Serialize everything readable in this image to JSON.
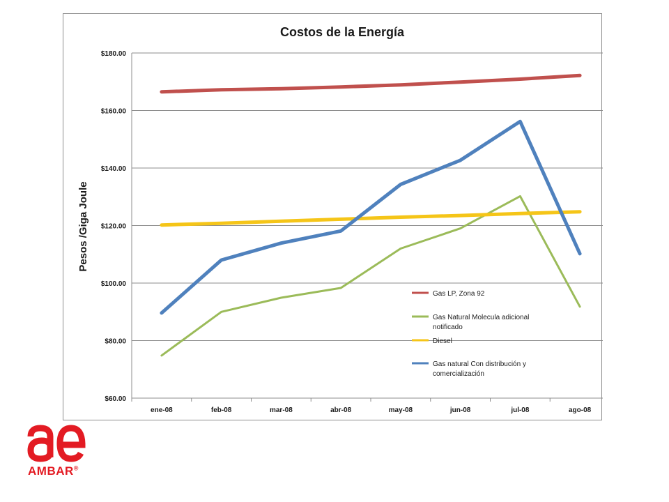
{
  "chart_data": {
    "type": "line",
    "title": "Costos de la Energía",
    "xlabel": "",
    "ylabel": "Pesos /Giga Joule",
    "categories": [
      "ene-08",
      "feb-08",
      "mar-08",
      "abr-08",
      "may-08",
      "jun-08",
      "jul-08",
      "ago-08"
    ],
    "ylim": [
      60,
      180
    ],
    "yticks": [
      60,
      80,
      100,
      120,
      140,
      160,
      180
    ],
    "ytick_labels": [
      "$60.00",
      "$80.00",
      "$100.00",
      "$120.00",
      "$140.00",
      "$160.00",
      "$180.00"
    ],
    "grid": true,
    "legend_position": "inside-lower-right",
    "series": [
      {
        "name": "Gas LP, Zona 92",
        "color": "#c0504d",
        "width": 5,
        "values": [
          166.5,
          167.2,
          167.6,
          168.2,
          168.9,
          169.9,
          170.9,
          172.2
        ]
      },
      {
        "name": "Gas Natural Molecula adicional notificado",
        "color": "#9bbb59",
        "width": 3,
        "values": [
          74.8,
          90.0,
          94.9,
          98.3,
          112.0,
          119.0,
          130.2,
          91.8
        ]
      },
      {
        "name": "Diesel",
        "color": "#f5c518",
        "width": 5,
        "values": [
          120.2,
          120.8,
          121.5,
          122.2,
          122.9,
          123.5,
          124.2,
          124.8
        ]
      },
      {
        "name": "Gas natural Con distribución y comercialización",
        "color": "#4f81bd",
        "width": 5,
        "values": [
          89.6,
          108.0,
          113.9,
          118.1,
          134.3,
          142.7,
          156.2,
          110.2
        ]
      }
    ]
  },
  "logo": {
    "brand_text": "AMBAR",
    "registered": "®",
    "color": "#e31b23"
  }
}
